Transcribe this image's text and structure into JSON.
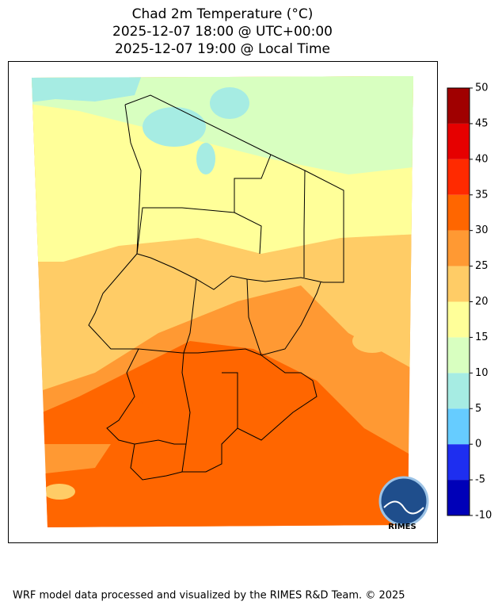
{
  "title": {
    "lines": [
      "Chad 2m Temperature (°C)",
      "2025-12-07 18:00 @ UTC+00:00",
      "2025-12-07 19:00 @ Local Time"
    ]
  },
  "colorbar": {
    "lim": [
      -10,
      50
    ],
    "ticks": [
      -10,
      -5,
      0,
      5,
      10,
      15,
      20,
      25,
      30,
      35,
      40,
      45,
      50
    ],
    "colors": [
      "#0000b8",
      "#1e2ef0",
      "#66ccff",
      "#a6ece3",
      "#d8ffc0",
      "#ffff99",
      "#ffcc66",
      "#ff9933",
      "#ff6600",
      "#ff2a00",
      "#e60000",
      "#a00000"
    ]
  },
  "logo": {
    "text": "RIMES"
  },
  "footer": "WRF model data processed and visualized by the RIMES R&D Team. © 2025"
}
